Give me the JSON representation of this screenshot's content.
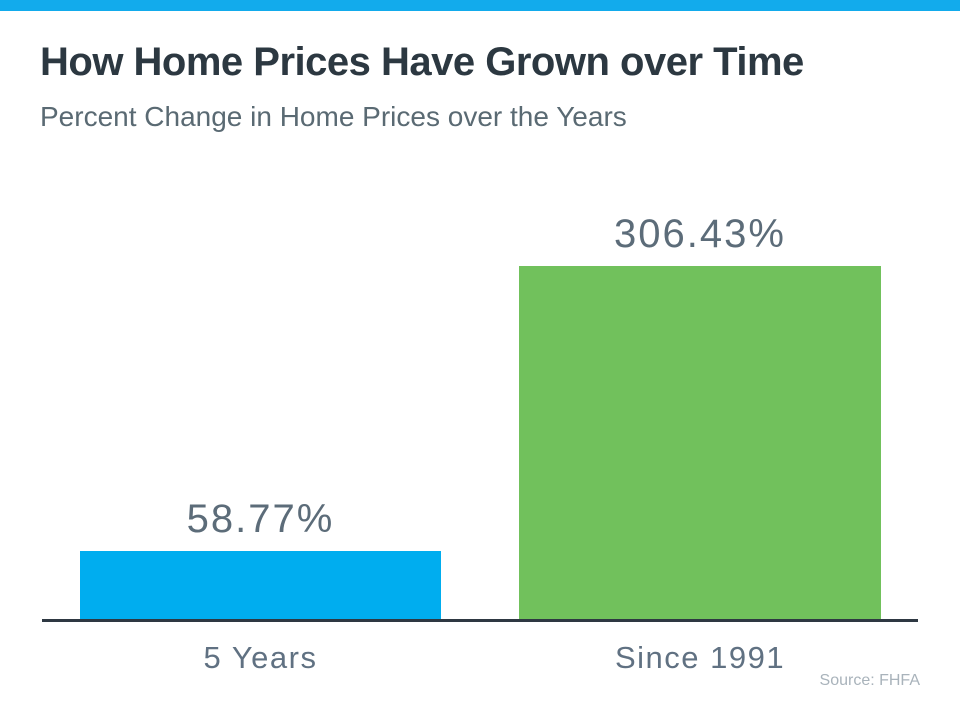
{
  "page": {
    "title": "How Home Prices Have Grown over Time",
    "subtitle": "Percent Change in Home Prices over the Years",
    "source": "Source: FHFA"
  },
  "colors": {
    "accent_bar": "#12ABEC",
    "bar_blue": "#00ADEF",
    "bar_green": "#71C15C",
    "title_color": "#2C3841",
    "subtitle_color": "#5A6A73",
    "value_color": "#5C6C79",
    "category_color": "#607182",
    "axis_color": "#2E3842",
    "source_color": "#A9B3BB",
    "bg": "#FFFFFF"
  },
  "chart_data": {
    "type": "bar",
    "title": "How Home Prices Have Grown over Time",
    "subtitle": "Percent Change in Home Prices over the Years",
    "categories": [
      "5 Years",
      "Since 1991"
    ],
    "values": [
      58.77,
      306.43
    ],
    "data_labels": [
      "58.77%",
      "306.43%"
    ],
    "bar_colors": [
      "#00ADEF",
      "#71C15C"
    ],
    "xlabel": "",
    "ylabel": "",
    "ylim": [
      0,
      306.43
    ],
    "grid": false,
    "legend": false,
    "y_axis_visible": false,
    "x_axis_visible": true,
    "source": "Source: FHFA"
  }
}
